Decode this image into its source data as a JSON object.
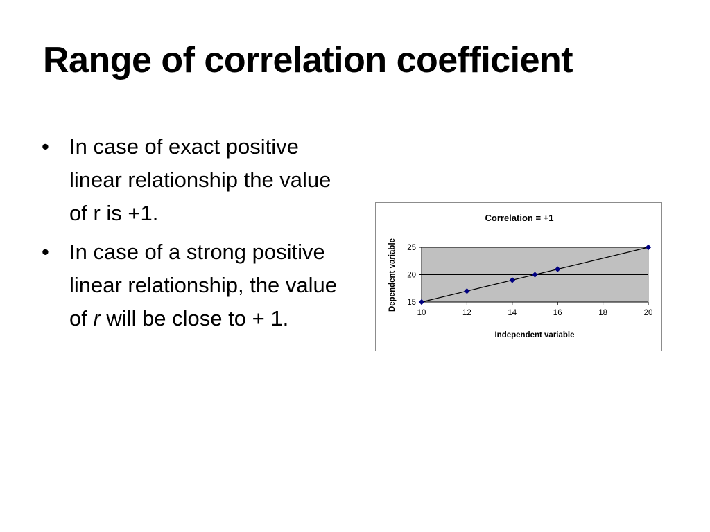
{
  "slide": {
    "title": "Range of correlation coefficient",
    "bullet_char": "•",
    "bullets": [
      {
        "text": "In case of exact positive linear relationship the value of r is +1."
      },
      {
        "text_before": "In case of a strong positive linear relationship, the value of ",
        "italic": "r",
        "text_after": " will be close to + 1."
      }
    ]
  },
  "chart_data": {
    "type": "scatter",
    "title": "Correlation = +1",
    "xlabel": "Independent variable",
    "ylabel": "Dependent variable",
    "xlim": [
      10,
      20
    ],
    "ylim": [
      15,
      25
    ],
    "xticks": [
      10,
      12,
      14,
      16,
      18,
      20
    ],
    "yticks": [
      15,
      20,
      25
    ],
    "grid": true,
    "trendline": true,
    "plot_background": "#c0c0c0",
    "marker_color": "#000080",
    "points": [
      {
        "x": 10,
        "y": 15
      },
      {
        "x": 12,
        "y": 17
      },
      {
        "x": 14,
        "y": 19
      },
      {
        "x": 15,
        "y": 20
      },
      {
        "x": 16,
        "y": 21
      },
      {
        "x": 20,
        "y": 25
      }
    ]
  }
}
